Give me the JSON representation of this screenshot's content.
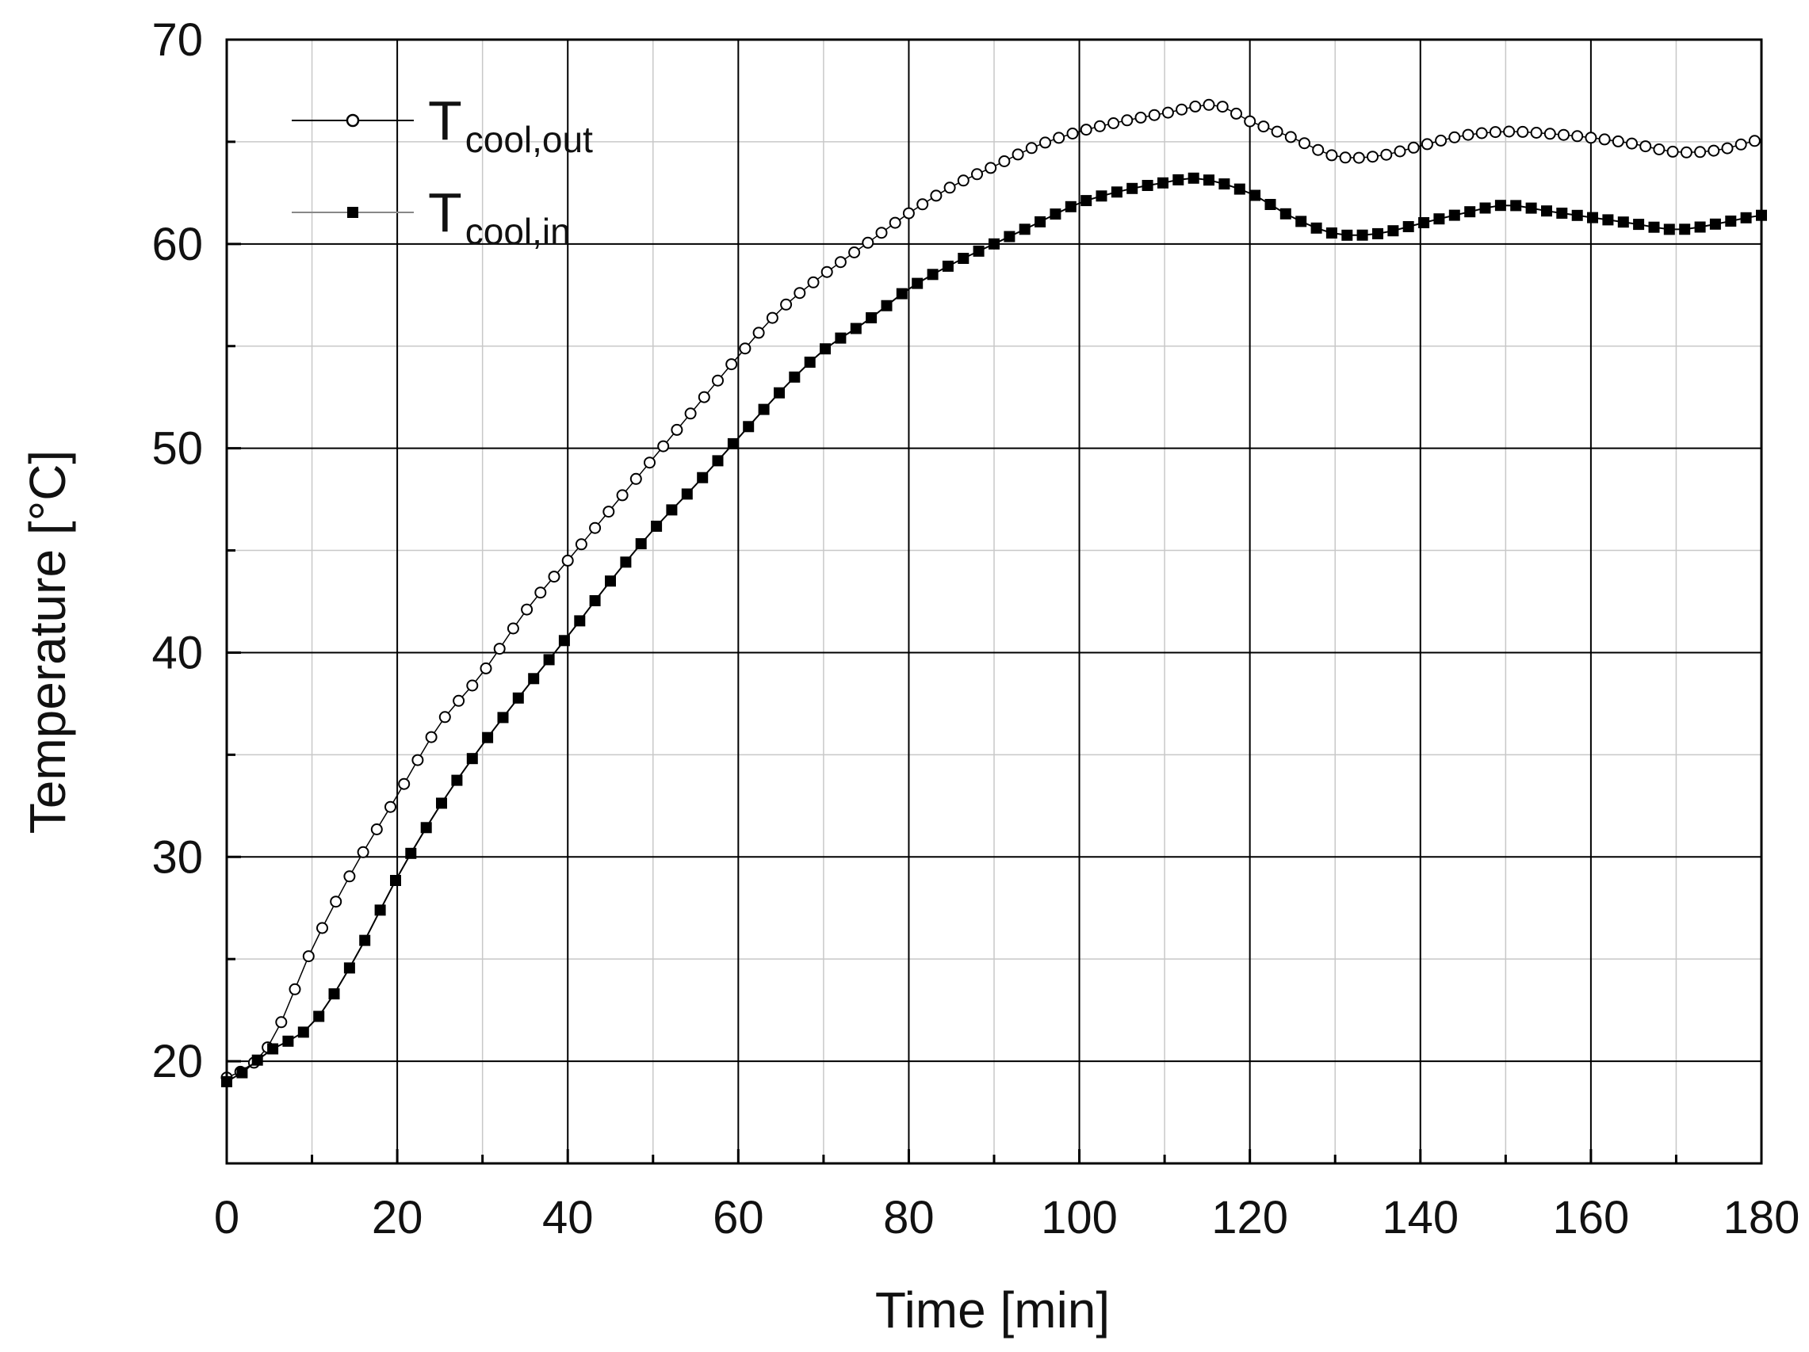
{
  "chart_data": {
    "type": "line",
    "title": "",
    "xlabel": "Time [min]",
    "ylabel": "Temperature [°C]",
    "xlim": [
      0,
      180
    ],
    "ylim": [
      15,
      70
    ],
    "xticks": [
      "0",
      "20",
      "40",
      "60",
      "80",
      "100",
      "120",
      "140",
      "160",
      "180"
    ],
    "yticks": [
      "20",
      "30",
      "40",
      "50",
      "60",
      "70"
    ],
    "grid": true,
    "legend_position": "top-left",
    "series": [
      {
        "name": "T",
        "subscript": "cool,out",
        "marker": "open-circle",
        "x": [
          0,
          5,
          10,
          15,
          20,
          25,
          30,
          35,
          40,
          45,
          50,
          55,
          60,
          65,
          70,
          75,
          80,
          85,
          90,
          95,
          100,
          105,
          110,
          116,
          120,
          125,
          130,
          135,
          140,
          145,
          150,
          155,
          160,
          165,
          170,
          175,
          180
        ],
        "y": [
          19.2,
          20.8,
          25.5,
          29.5,
          33.0,
          36.5,
          39.0,
          42.0,
          44.5,
          47.0,
          49.5,
          52.0,
          54.5,
          56.8,
          58.5,
          60.0,
          61.5,
          62.8,
          63.8,
          64.8,
          65.5,
          66.0,
          66.4,
          66.8,
          66.0,
          65.2,
          64.3,
          64.3,
          64.8,
          65.3,
          65.5,
          65.4,
          65.2,
          64.9,
          64.5,
          64.6,
          65.1
        ]
      },
      {
        "name": "T",
        "subscript": "cool,in",
        "marker": "filled-square",
        "x": [
          0,
          5,
          10,
          15,
          20,
          25,
          30,
          35,
          40,
          45,
          50,
          55,
          60,
          65,
          70,
          75,
          80,
          85,
          90,
          95,
          100,
          105,
          110,
          114,
          120,
          125,
          130,
          135,
          140,
          145,
          150,
          155,
          160,
          165,
          170,
          175,
          180
        ],
        "y": [
          19.0,
          20.5,
          21.8,
          25.0,
          29.0,
          32.5,
          35.5,
          38.2,
          40.8,
          43.5,
          46.0,
          48.2,
          50.5,
          52.8,
          54.8,
          56.2,
          57.8,
          59.0,
          60.0,
          61.0,
          62.0,
          62.6,
          63.0,
          63.2,
          62.5,
          61.3,
          60.5,
          60.5,
          61.0,
          61.5,
          61.9,
          61.6,
          61.3,
          61.0,
          60.7,
          61.0,
          61.4
        ]
      }
    ]
  }
}
